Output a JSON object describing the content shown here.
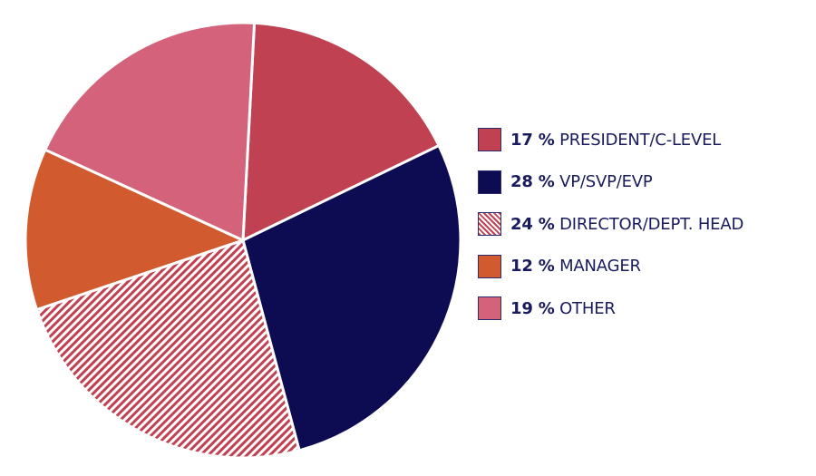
{
  "chart_data": {
    "type": "pie",
    "slices": [
      {
        "value": 17,
        "pct_label": "17 %",
        "label": "PRESIDENT/C-LEVEL",
        "color": "#c04152",
        "pattern": "solid"
      },
      {
        "value": 28,
        "pct_label": "28 %",
        "label": "VP/SVP/EVP",
        "color": "#0d0b52",
        "pattern": "solid"
      },
      {
        "value": 24,
        "pct_label": "24 %",
        "label": "DIRECTOR/DEPT. HEAD",
        "color": "#c04152",
        "pattern": "diagonal-hatch"
      },
      {
        "value": 12,
        "pct_label": "12 %",
        "label": "MANAGER",
        "color": "#d25a2f",
        "pattern": "solid"
      },
      {
        "value": 19,
        "pct_label": "19 %",
        "label": "OTHER",
        "color": "#d4627a",
        "pattern": "solid"
      }
    ],
    "legend_position": "right",
    "text_color": "#1a1a5e"
  }
}
